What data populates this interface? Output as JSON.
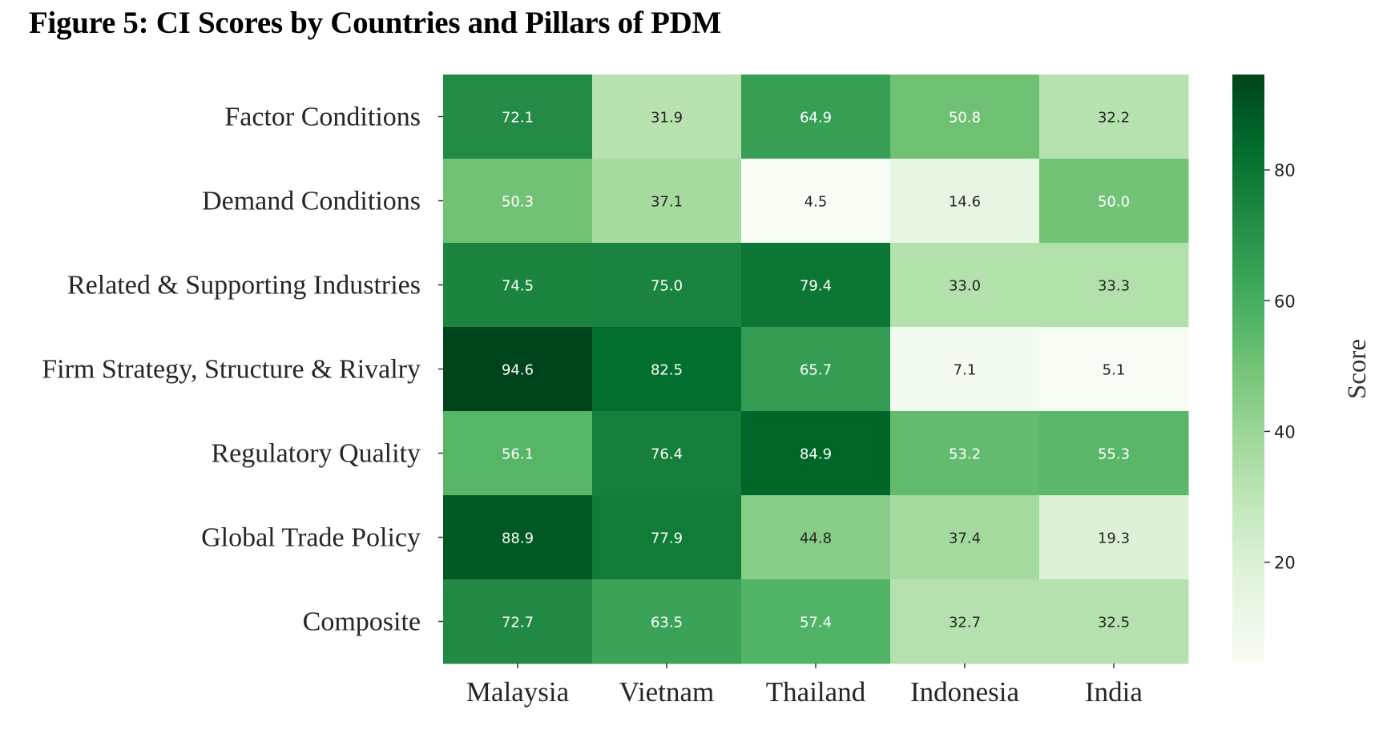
{
  "chart_data": {
    "type": "heatmap",
    "title": "Figure 5: CI Scores by Countries and Pillars of PDM",
    "rows": [
      "Factor Conditions",
      "Demand Conditions",
      "Related & Supporting Industries",
      "Firm Strategy, Structure & Rivalry",
      "Regulatory Quality",
      "Global Trade Policy",
      "Composite"
    ],
    "columns": [
      "Malaysia",
      "Vietnam",
      "Thailand",
      "Indonesia",
      "India"
    ],
    "values": [
      [
        72.1,
        31.9,
        64.9,
        50.8,
        32.2
      ],
      [
        50.3,
        37.1,
        4.5,
        14.6,
        50.0
      ],
      [
        74.5,
        75.0,
        79.4,
        33.0,
        33.3
      ],
      [
        94.6,
        82.5,
        65.7,
        7.1,
        5.1
      ],
      [
        56.1,
        76.4,
        84.9,
        53.2,
        55.3
      ],
      [
        88.9,
        77.9,
        44.8,
        37.4,
        19.3
      ],
      [
        72.7,
        63.5,
        57.4,
        32.7,
        32.5
      ]
    ],
    "colorbar": {
      "label": "Score",
      "range": [
        4.5,
        94.6
      ],
      "ticks": [
        20,
        40,
        60,
        80
      ],
      "colormap": "Greens"
    }
  }
}
